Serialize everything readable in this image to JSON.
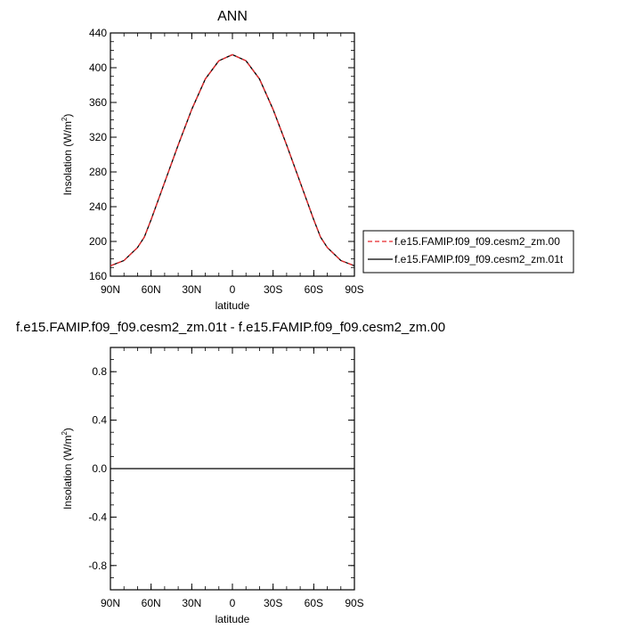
{
  "chart_data": [
    {
      "type": "line",
      "title": "ANN",
      "xlabel": "latitude",
      "ylabel_main": "Insolation (W/m",
      "ylabel_sup": "2",
      "ylabel_tail": ")",
      "xlim": [
        -90,
        90
      ],
      "ylim": [
        160,
        440
      ],
      "x_ticks": [
        {
          "value": -90,
          "label": "90N"
        },
        {
          "value": -60,
          "label": "60N"
        },
        {
          "value": -30,
          "label": "30N"
        },
        {
          "value": 0,
          "label": "0"
        },
        {
          "value": 30,
          "label": "30S"
        },
        {
          "value": 60,
          "label": "60S"
        },
        {
          "value": 90,
          "label": "90S"
        }
      ],
      "y_ticks": [
        {
          "value": 160,
          "label": "160"
        },
        {
          "value": 200,
          "label": "200"
        },
        {
          "value": 240,
          "label": "240"
        },
        {
          "value": 280,
          "label": "280"
        },
        {
          "value": 320,
          "label": "320"
        },
        {
          "value": 360,
          "label": "360"
        },
        {
          "value": 400,
          "label": "400"
        },
        {
          "value": 440,
          "label": "440"
        }
      ],
      "x": [
        -90,
        -80,
        -70,
        -65,
        -60,
        -50,
        -40,
        -30,
        -20,
        -10,
        0,
        10,
        20,
        30,
        40,
        50,
        60,
        65,
        70,
        80,
        90
      ],
      "series": [
        {
          "name": "f.e15.FAMIP.f09_f09.cesm2_zm.00",
          "color": "#e8282b",
          "dash": true,
          "values": [
            172,
            178,
            193,
            205,
            225,
            268,
            311,
            352,
            387,
            408,
            415,
            408,
            387,
            352,
            311,
            268,
            225,
            205,
            193,
            178,
            172
          ]
        },
        {
          "name": "f.e15.FAMIP.f09_f09.cesm2_zm.01t",
          "color": "#000000",
          "dash": false,
          "values": [
            172,
            178,
            193,
            205,
            225,
            268,
            311,
            352,
            387,
            408,
            415,
            408,
            387,
            352,
            311,
            268,
            225,
            205,
            193,
            178,
            172
          ]
        }
      ],
      "legend_placement": "right"
    },
    {
      "type": "line",
      "title": "f.e15.FAMIP.f09_f09.cesm2_zm.01t - f.e15.FAMIP.f09_f09.cesm2_zm.00",
      "xlabel": "latitude",
      "ylabel_main": "Insolation (W/m",
      "ylabel_sup": "2",
      "ylabel_tail": ")",
      "xlim": [
        -90,
        90
      ],
      "ylim": [
        -1,
        1
      ],
      "x_ticks": [
        {
          "value": -90,
          "label": "90N"
        },
        {
          "value": -60,
          "label": "60N"
        },
        {
          "value": -30,
          "label": "30N"
        },
        {
          "value": 0,
          "label": "0"
        },
        {
          "value": 30,
          "label": "30S"
        },
        {
          "value": 60,
          "label": "60S"
        },
        {
          "value": 90,
          "label": "90S"
        }
      ],
      "y_ticks": [
        {
          "value": -0.8,
          "label": "-0.8"
        },
        {
          "value": -0.4,
          "label": "-0.4"
        },
        {
          "value": 0,
          "label": "0.0"
        },
        {
          "value": 0.4,
          "label": "0.4"
        },
        {
          "value": 0.8,
          "label": "0.8"
        }
      ],
      "x": [
        -90,
        90
      ],
      "series": [
        {
          "color": "#000000",
          "dash": false,
          "values": [
            0,
            0
          ]
        }
      ]
    }
  ]
}
